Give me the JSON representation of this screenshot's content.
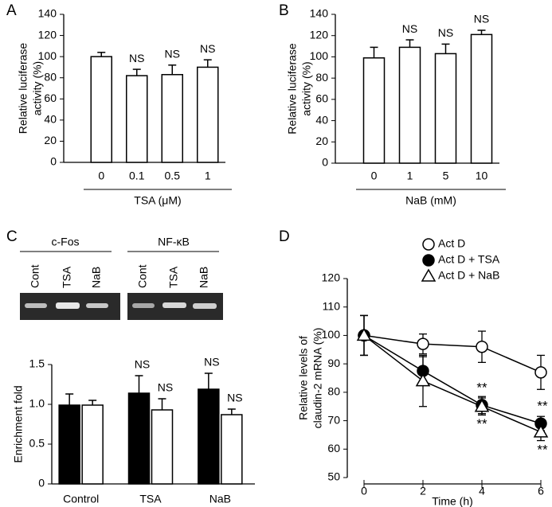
{
  "chart_data": [
    {
      "type": "bar",
      "panel": "A",
      "y_label": [
        "Relative luciferase",
        "activity (%)"
      ],
      "x_label": "TSA (μM)",
      "categories": [
        "0",
        "0.1",
        "0.5",
        "1"
      ],
      "values": [
        100,
        82,
        83,
        90
      ],
      "errors": [
        4,
        6,
        9,
        7
      ],
      "annotations": [
        null,
        "NS",
        "NS",
        "NS"
      ],
      "color": "#ffffff",
      "ylim": [
        0,
        140
      ],
      "yticks": [
        0,
        20,
        40,
        60,
        80,
        100,
        120,
        140
      ]
    },
    {
      "type": "bar",
      "panel": "B",
      "y_label": [
        "Relative luciferase",
        "activity (%)"
      ],
      "x_label": "NaB (mM)",
      "categories": [
        "0",
        "1",
        "5",
        "10"
      ],
      "values": [
        99,
        109,
        103,
        121
      ],
      "errors": [
        10,
        7,
        9,
        4
      ],
      "annotations": [
        null,
        "NS",
        "NS",
        "NS"
      ],
      "color": "#ffffff",
      "ylim": [
        0,
        140
      ],
      "yticks": [
        0,
        20,
        40,
        60,
        80,
        100,
        120,
        140
      ]
    },
    {
      "type": "bar",
      "panel": "C",
      "y_label": [
        "Enrichment fold"
      ],
      "categories": [
        "Control",
        "TSA",
        "NaB"
      ],
      "series": [
        {
          "color": "#000000",
          "values": [
            0.99,
            1.14,
            1.19
          ],
          "errors": [
            0.14,
            0.22,
            0.2
          ],
          "annotations": [
            null,
            "NS",
            "NS"
          ]
        },
        {
          "color": "#ffffff",
          "values": [
            0.99,
            0.93,
            0.87
          ],
          "errors": [
            0.06,
            0.14,
            0.07
          ],
          "annotations": [
            null,
            "NS",
            "NS"
          ]
        }
      ],
      "ylim": [
        0,
        1.5
      ],
      "yticks": [
        0,
        0.5,
        {
          "value": 1,
          "label": "1.0"
        },
        1.5
      ]
    },
    {
      "type": "line",
      "panel": "D",
      "y_label": [
        "Relative levels of",
        "claudin-2 mRNA (%)"
      ],
      "x_label": "Time (h)",
      "x": [
        0,
        2,
        4,
        6
      ],
      "xlim": [
        0,
        6
      ],
      "xticks": [
        0,
        2,
        4,
        6
      ],
      "ylim": [
        50,
        120
      ],
      "yticks": [
        50,
        60,
        70,
        80,
        90,
        100,
        110,
        120
      ],
      "legend": "upper right",
      "series": [
        {
          "name": "Act D",
          "marker": "circle-open",
          "color": "#000000",
          "values": [
            100,
            97,
            96,
            87
          ],
          "errors": [
            7,
            3.5,
            5.5,
            6
          ],
          "annotations": [
            null,
            null,
            null,
            null
          ]
        },
        {
          "name": "Act D + TSA",
          "marker": "circle-filled",
          "color": "#000000",
          "values": [
            100,
            87.5,
            75.5,
            69
          ],
          "errors": [
            7,
            5,
            3,
            2.5
          ],
          "annotations": [
            null,
            null,
            "**",
            "**"
          ]
        },
        {
          "name": "Act D + NaB",
          "marker": "triangle-open",
          "color": "#000000",
          "values": [
            100,
            84,
            75,
            66
          ],
          "errors": [
            7,
            9,
            3,
            3
          ],
          "annotations": [
            null,
            null,
            "**",
            "**"
          ]
        }
      ]
    }
  ],
  "gel": {
    "groups": [
      {
        "label": "c-Fos",
        "lanes": [
          "Cont",
          "TSA",
          "NaB"
        ]
      },
      {
        "label": "NF-κB",
        "lanes": [
          "Cont",
          "TSA",
          "NaB"
        ]
      }
    ]
  }
}
